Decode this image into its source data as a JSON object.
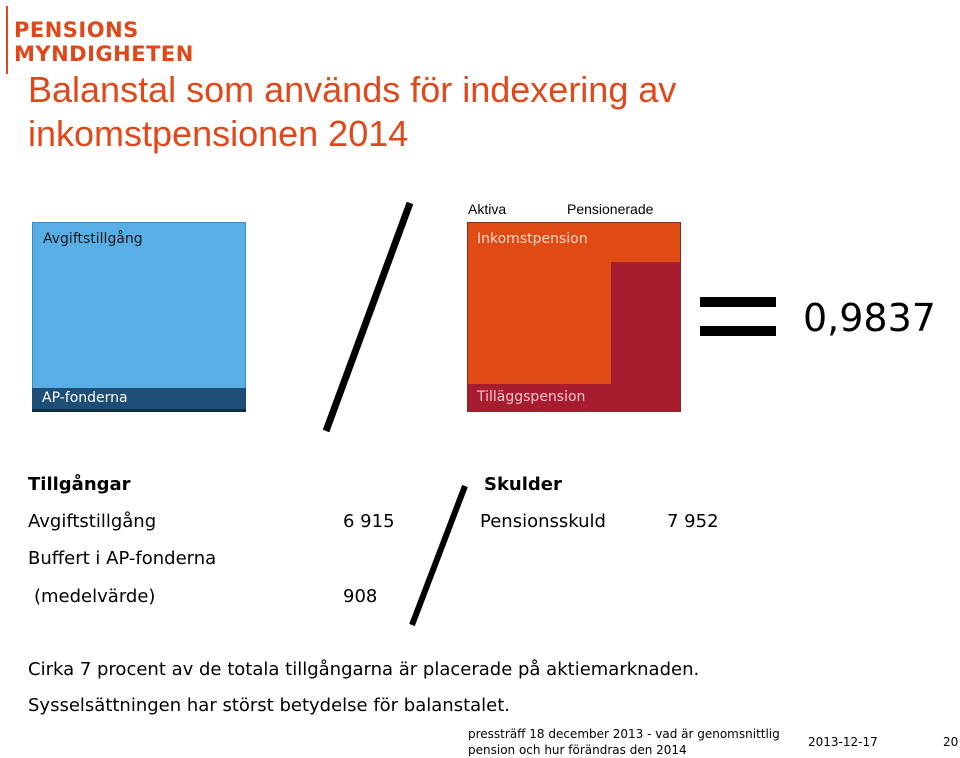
{
  "logo": {
    "line1": "PENSIONS",
    "line2": "MYNDIGHETEN"
  },
  "title": {
    "line1": "Balanstal som används för indexering av",
    "line2": "inkomstpensionen 2014"
  },
  "diagram": {
    "assets_label": "Avgiftstillgång",
    "buffer_label": "AP-fonderna",
    "col_active": "Aktiva",
    "col_retired": "Pensionerade",
    "income_pension_label": "Inkomstpension",
    "supplementary_label": "Tilläggspension",
    "ratio": "0,9837",
    "colors": {
      "assets": "#5aaee6",
      "buffer": "#1c4e78",
      "income": "#e04a14",
      "supplementary": "#a81c30"
    }
  },
  "table": {
    "assets_header": "Tillgångar",
    "liabilities_header": "Skulder",
    "row1_label": "Avgiftstillgång",
    "row1_value": "6 915",
    "row2_label": "Buffert i AP-fonderna",
    "row3_label": "(medelvärde)",
    "row3_value": "908",
    "liab_label": "Pensionsskuld",
    "liab_value": "7 952"
  },
  "notes": {
    "line1": "Cirka 7 procent av de totala tillgångarna är placerade på aktiemarknaden.",
    "line2": "Sysselsättningen har störst betydelse för balanstalet."
  },
  "footer": {
    "line1": "pressträff 18 december 2013 - vad är genomsnittlig",
    "line2": "pension och hur förändras den 2014",
    "date": "2013-12-17",
    "page": "20"
  }
}
